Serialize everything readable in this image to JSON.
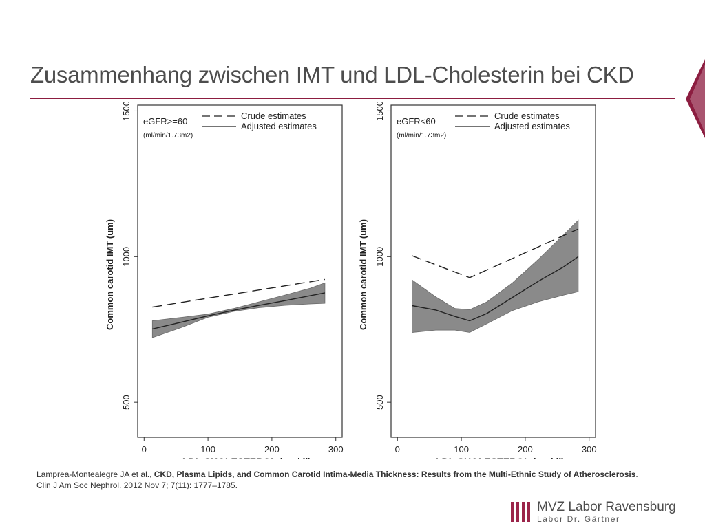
{
  "slide": {
    "title": "Zusammenhang zwischen IMT und LDL-Cholesterin bei CKD"
  },
  "citation": {
    "authors": "Lamprea-Montealegre JA et al., ",
    "article_title": "CKD, Plasma Lipids, and Common Carotid Intima-Media Thickness: Results from the Multi-Ethnic Study of Atherosclerosis",
    "period": ".",
    "journal": "Clin J Am Soc Nephrol. 2012 Nov 7; 7(11): 1777–1785."
  },
  "logo": {
    "main": "MVZ Labor Ravensburg",
    "sub": "Labor Dr. Gärtner",
    "color": "#9b2449"
  },
  "colors": {
    "accent": "#8c1d40",
    "band": "#8a8a8a",
    "line": "#222222"
  },
  "chart_data": [
    {
      "type": "line",
      "legend_position": "top-left",
      "panel_label": "eGFR>=60",
      "panel_sublabel": "(ml/min/1.73m2)",
      "xlabel": "LDL CHOLESTEROL (mg/dl)",
      "ylabel": "Common carotid IMT (um)",
      "xlim": [
        -10,
        310
      ],
      "ylim": [
        380,
        1520
      ],
      "xticks": [
        0,
        100,
        200,
        300
      ],
      "yticks": [
        500,
        1000,
        1500
      ],
      "grid": false,
      "series": [
        {
          "name": "Crude estimates",
          "style": "dashed",
          "x": [
            13,
            283
          ],
          "y": [
            827,
            922
          ]
        },
        {
          "name": "Adjusted estimates",
          "style": "solid",
          "x": [
            13,
            60,
            100,
            140,
            180,
            220,
            260,
            283
          ],
          "y": [
            752,
            776,
            797,
            816,
            833,
            849,
            866,
            876
          ]
        }
      ],
      "ci_band": {
        "x": [
          13,
          60,
          100,
          140,
          180,
          220,
          260,
          283
        ],
        "lower": [
          722,
          758,
          792,
          812,
          825,
          833,
          838,
          840
        ],
        "upper": [
          780,
          792,
          803,
          822,
          845,
          868,
          892,
          910
        ]
      }
    },
    {
      "type": "line",
      "legend_position": "top-left",
      "panel_label": "eGFR<60",
      "panel_sublabel": "(ml/min/1.73m2)",
      "xlabel": "LDL CHOLESTEROL (mg/dl)",
      "ylabel": "Common carotid IMT (um)",
      "xlim": [
        -10,
        310
      ],
      "ylim": [
        380,
        1520
      ],
      "xticks": [
        0,
        100,
        200,
        300
      ],
      "yticks": [
        500,
        1000,
        1500
      ],
      "grid": false,
      "series": [
        {
          "name": "Crude estimates",
          "style": "dashed",
          "x": [
            23,
            113,
            283
          ],
          "y": [
            1003,
            928,
            1095
          ]
        },
        {
          "name": "Adjusted estimates",
          "style": "solid",
          "x": [
            23,
            60,
            90,
            113,
            140,
            180,
            220,
            260,
            283
          ],
          "y": [
            832,
            817,
            795,
            780,
            805,
            860,
            915,
            965,
            1000
          ]
        }
      ],
      "ci_band": {
        "x": [
          23,
          60,
          90,
          113,
          140,
          180,
          220,
          260,
          283
        ],
        "lower": [
          740,
          748,
          748,
          740,
          770,
          815,
          845,
          868,
          880
        ],
        "upper": [
          920,
          862,
          822,
          818,
          845,
          910,
          990,
          1075,
          1125
        ]
      }
    }
  ]
}
